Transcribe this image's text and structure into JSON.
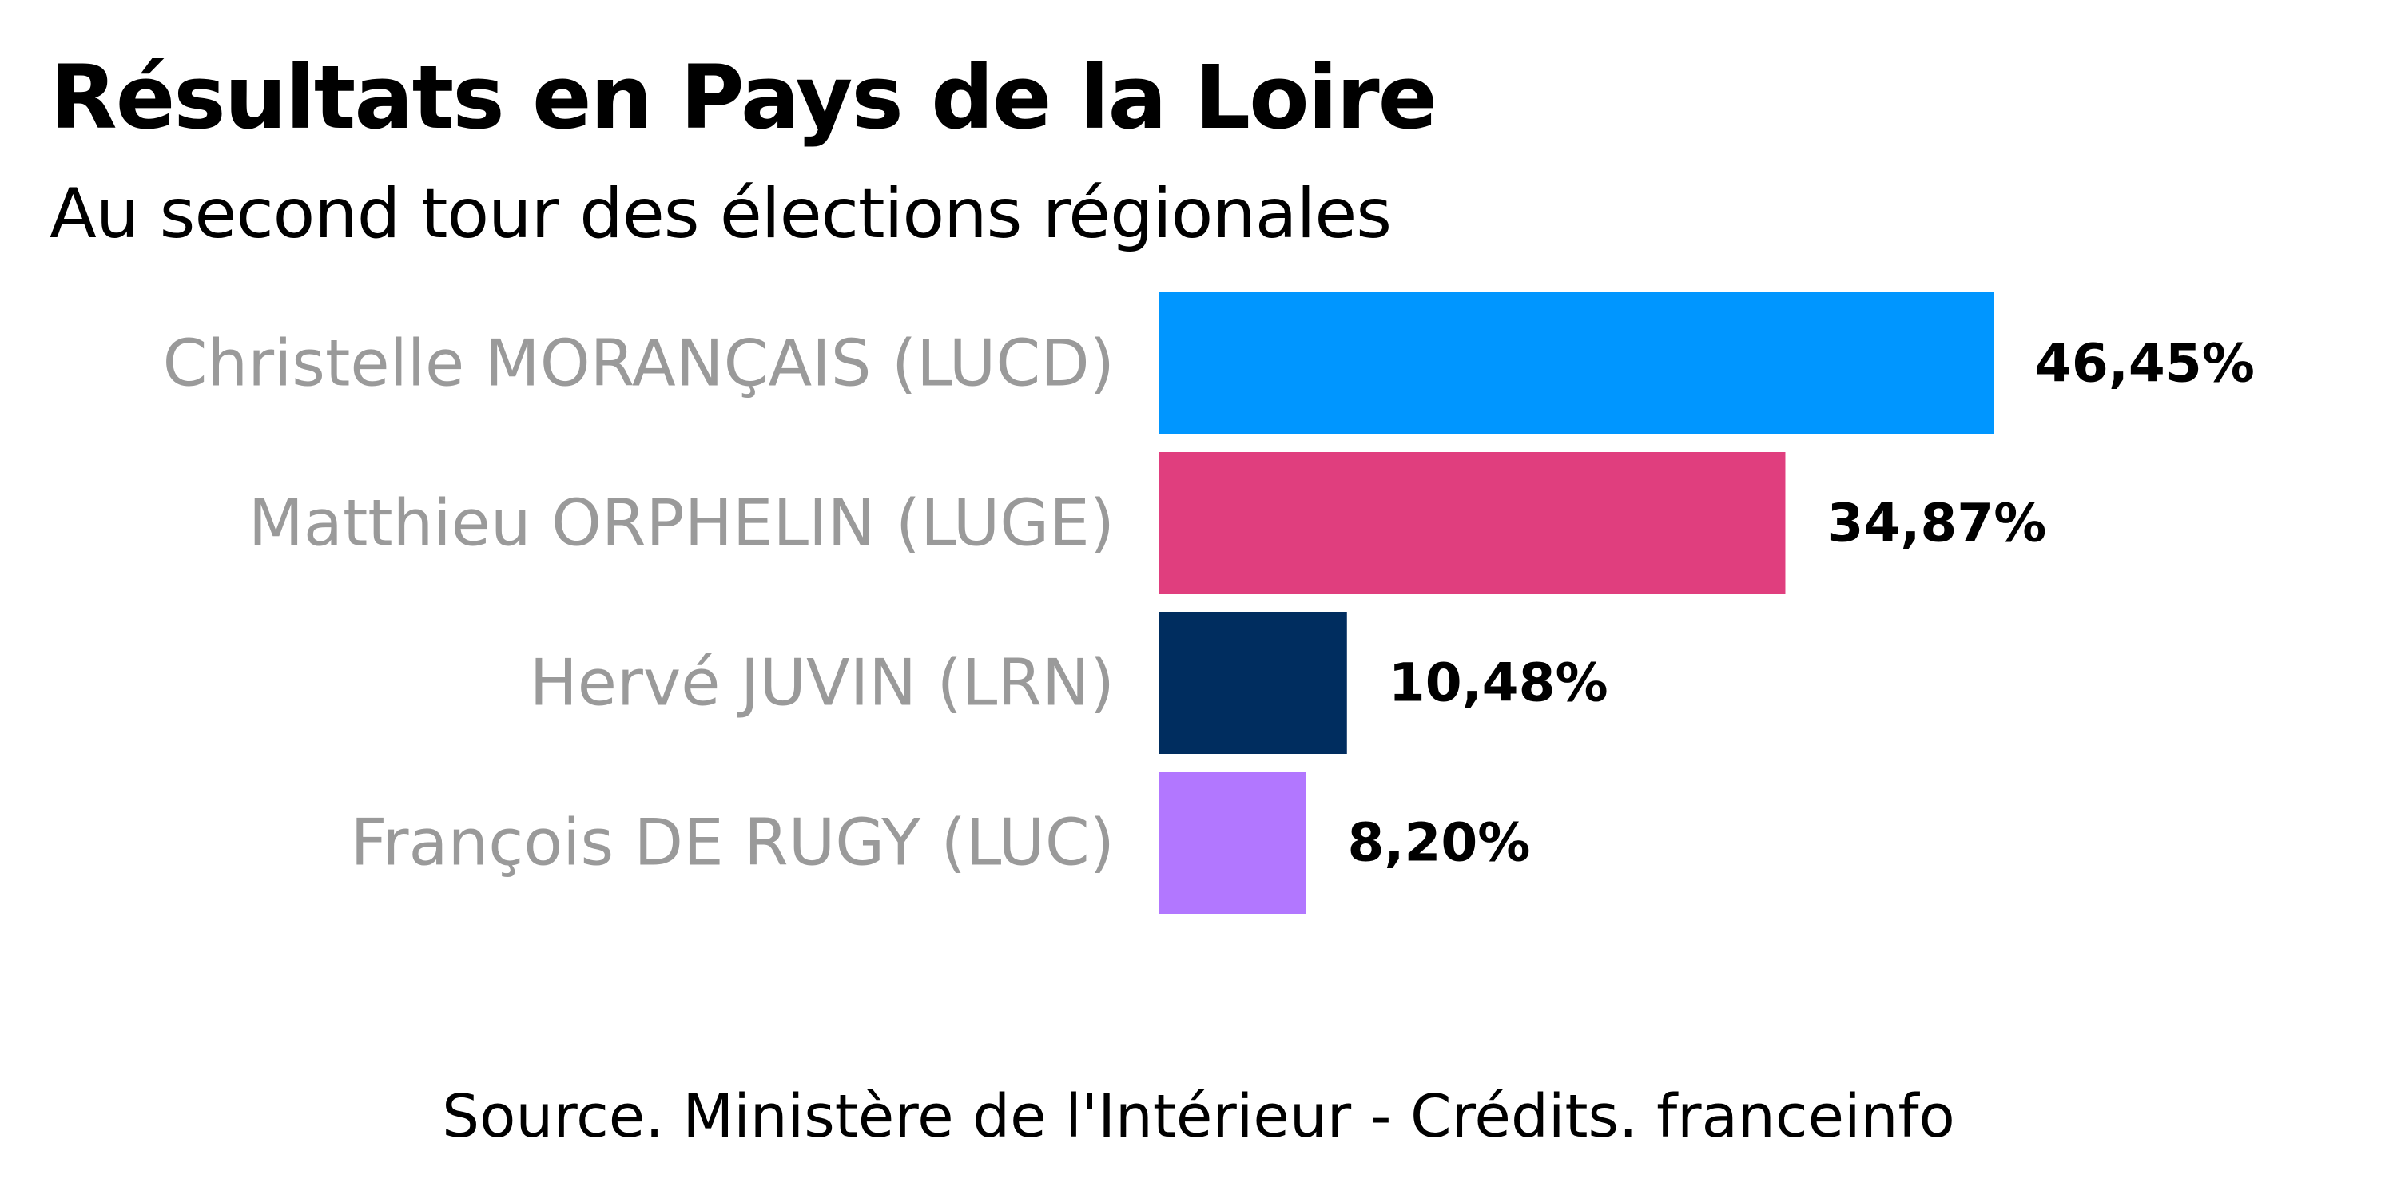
{
  "title": "Résultats en Pays de la Loire",
  "subtitle": "Au second tour des élections régionales",
  "source": "Source. Ministère de l'Intérieur - Crédits. franceinfo",
  "chart_data": {
    "type": "bar",
    "orientation": "horizontal",
    "title": "Résultats en Pays de la Loire",
    "subtitle": "Au second tour des élections régionales",
    "categories": [
      "Christelle MORANÇAIS (LUCD)",
      "Matthieu ORPHELIN (LUGE)",
      "Hervé JUVIN (LRN)",
      "François DE RUGY (LUC)"
    ],
    "values": [
      46.45,
      34.87,
      10.48,
      8.2
    ],
    "value_labels": [
      "46,45%",
      "34,87%",
      "10,48%",
      "8,20%"
    ],
    "colors": [
      "#0096ff",
      "#e03e7e",
      "#002d5f",
      "#b277ff"
    ],
    "label_color": "#9a9a9a",
    "xlim": [
      0,
      100
    ],
    "grid": false,
    "legend": "none",
    "xlabel": "",
    "ylabel": ""
  }
}
